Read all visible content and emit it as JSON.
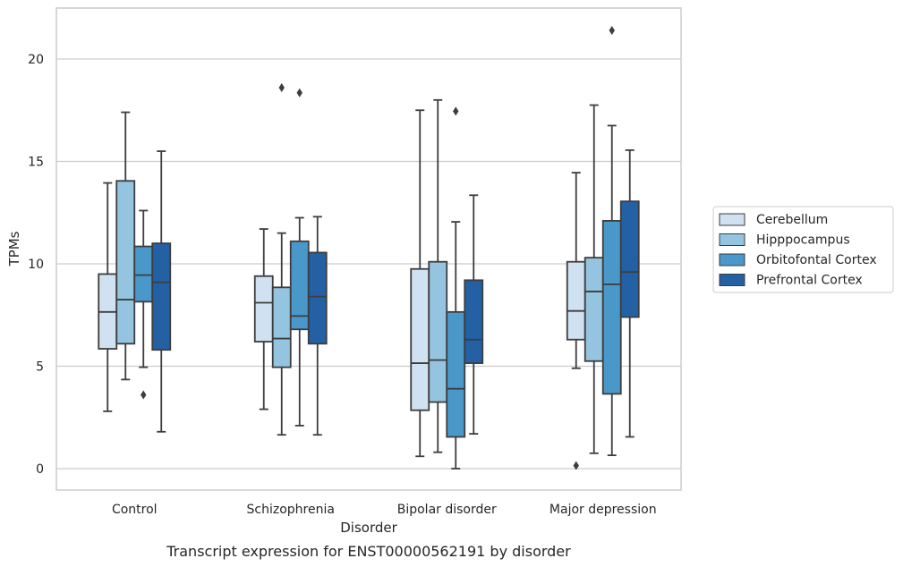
{
  "caption": "Transcript expression for ENST00000562191 by disorder",
  "chart_data": {
    "type": "box",
    "xlabel": "Disorder",
    "ylabel": "TPMs",
    "ylim": [
      -1,
      23.5
    ],
    "yticks": [
      0,
      5,
      10,
      15,
      20
    ],
    "grid": "horizontal",
    "legend_placement": "right-outside",
    "categories": [
      "Control",
      "Schizophrenia",
      "Bipolar disorder",
      "Major depression"
    ],
    "series": [
      {
        "name": "Cerebellum",
        "color": "#d0e1f2",
        "boxes": [
          {
            "whislo": 2.8,
            "q1": 5.85,
            "med": 7.65,
            "q3": 9.5,
            "whishi": 13.95,
            "fliers": []
          },
          {
            "whislo": 2.9,
            "q1": 6.2,
            "med": 8.1,
            "q3": 9.4,
            "whishi": 11.7,
            "fliers": []
          },
          {
            "whislo": 0.6,
            "q1": 2.85,
            "med": 5.15,
            "q3": 9.75,
            "whishi": 17.5,
            "fliers": []
          },
          {
            "whislo": 4.9,
            "q1": 6.3,
            "med": 7.7,
            "q3": 10.1,
            "whishi": 14.45,
            "fliers": [
              0.15
            ]
          }
        ]
      },
      {
        "name": "Hipppocampus",
        "color": "#94c4df",
        "boxes": [
          {
            "whislo": 4.35,
            "q1": 6.1,
            "med": 8.25,
            "q3": 14.05,
            "whishi": 17.4,
            "fliers": []
          },
          {
            "whislo": 1.65,
            "q1": 4.95,
            "med": 6.35,
            "q3": 8.85,
            "whishi": 11.5,
            "fliers": [
              18.6
            ]
          },
          {
            "whislo": 0.8,
            "q1": 3.25,
            "med": 5.3,
            "q3": 10.1,
            "whishi": 18.0,
            "fliers": []
          },
          {
            "whislo": 0.75,
            "q1": 5.25,
            "med": 8.65,
            "q3": 10.3,
            "whishi": 17.75,
            "fliers": []
          }
        ]
      },
      {
        "name": "Orbitofontal Cortex",
        "color": "#4a98c9",
        "boxes": [
          {
            "whislo": 4.95,
            "q1": 8.15,
            "med": 9.45,
            "q3": 10.85,
            "whishi": 12.6,
            "fliers": [
              3.6
            ]
          },
          {
            "whislo": 2.1,
            "q1": 6.8,
            "med": 7.45,
            "q3": 11.1,
            "whishi": 12.25,
            "fliers": [
              18.35
            ]
          },
          {
            "whislo": 0.0,
            "q1": 1.55,
            "med": 3.9,
            "q3": 7.65,
            "whishi": 12.05,
            "fliers": [
              17.45
            ]
          },
          {
            "whislo": 0.65,
            "q1": 3.65,
            "med": 9.0,
            "q3": 12.1,
            "whishi": 16.75,
            "fliers": [
              21.4
            ]
          }
        ]
      },
      {
        "name": "Prefrontal Cortex",
        "color": "#2361a4",
        "boxes": [
          {
            "whislo": 1.8,
            "q1": 5.8,
            "med": 9.1,
            "q3": 11.0,
            "whishi": 15.5,
            "fliers": []
          },
          {
            "whislo": 1.65,
            "q1": 6.1,
            "med": 8.4,
            "q3": 10.55,
            "whishi": 12.3,
            "fliers": []
          },
          {
            "whislo": 1.7,
            "q1": 5.15,
            "med": 6.3,
            "q3": 9.2,
            "whishi": 13.35,
            "fliers": []
          },
          {
            "whislo": 1.55,
            "q1": 7.4,
            "med": 9.6,
            "q3": 13.05,
            "whishi": 15.55,
            "fliers": []
          }
        ]
      }
    ]
  }
}
